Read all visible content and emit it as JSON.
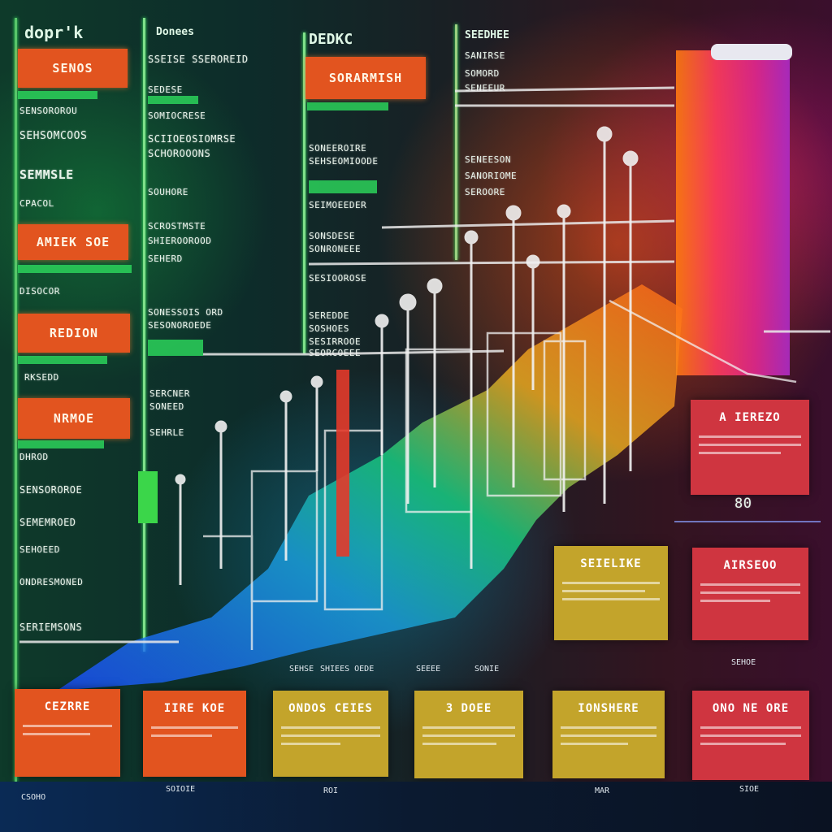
{
  "colors": {
    "accent_orange": "#e2541f",
    "accent_red": "#cf3540",
    "accent_mustard": "#c3a42b",
    "accent_green": "#2bd25a",
    "accent_magenta": "#e0307a"
  },
  "columns": {
    "col1_header": "dopr'k",
    "col2_header": "Donees",
    "col3_header": "DEDKC",
    "col4_header": "SEEDHEE"
  },
  "col1": {
    "tags": [
      "SENOS",
      "AMIEK SOE",
      "REDION",
      "NRMOE"
    ],
    "lines": [
      "SENSOROROU",
      "SEHSOMCOOS",
      "SEMMSLE",
      "CPACOL",
      "DISOCOR",
      "RKSEDD",
      "DHROD",
      "SENSOROROE",
      "SEMEMROED",
      "SEHOEED",
      "ONDRESMONED",
      "SERIEMSONS"
    ]
  },
  "col2": {
    "lines": [
      "SSEISE SSEROREID",
      "SEDESE",
      "SOMIOCRESE",
      "SCIIOEOSIOMRSE",
      "SCHOROOONS",
      "SOUHORE",
      "SCROSTMSTE",
      "SHIEROOROOD",
      "SEHERD",
      "SONESSOIS ORD",
      "SESONOROEDE",
      "SERCNER",
      "SONEED",
      "SEHRLE"
    ]
  },
  "col3": {
    "tag": "SORARMISH",
    "lines": [
      "SONEEROIRE",
      "SEHSEOMIOODE",
      "SEIMOEEDER",
      "SONSDESE",
      "SONRONEEE",
      "SESIOOROSE",
      "SEREDDE",
      "SOSHOES",
      "SESIRROOE",
      "SEORCOEEE"
    ]
  },
  "col4": {
    "lines": [
      "SANIRSE",
      "SOMORD",
      "SENEEUR",
      "SENEESON",
      "SANORIOME",
      "SEROORE"
    ]
  },
  "cards_right": [
    {
      "title": "A IEREZO",
      "style": "red"
    },
    {
      "title": "SEIELIKE",
      "style": "mustard"
    },
    {
      "title": "AIRSEOO",
      "style": "red"
    }
  ],
  "right_readout": "80",
  "cards_bottom": [
    {
      "title": "CEZRRE",
      "style": "orange"
    },
    {
      "title": "IIRE KOE",
      "style": "orange"
    },
    {
      "title": "ONDOS CEIES",
      "style": "mustard"
    },
    {
      "title": "3 DOEE",
      "style": "mustard"
    },
    {
      "title": "IONSHERE",
      "style": "mustard"
    },
    {
      "title": "ONO NE ORE",
      "style": "red"
    }
  ],
  "axis_labels": [
    "SEHSE",
    "SHIEES OEDE",
    "SEEEE",
    "SONIE",
    "SEHOE"
  ],
  "footer_labels": [
    "CSOHO",
    "SOIOIE",
    "ROI",
    "MAR",
    "SIOE"
  ]
}
